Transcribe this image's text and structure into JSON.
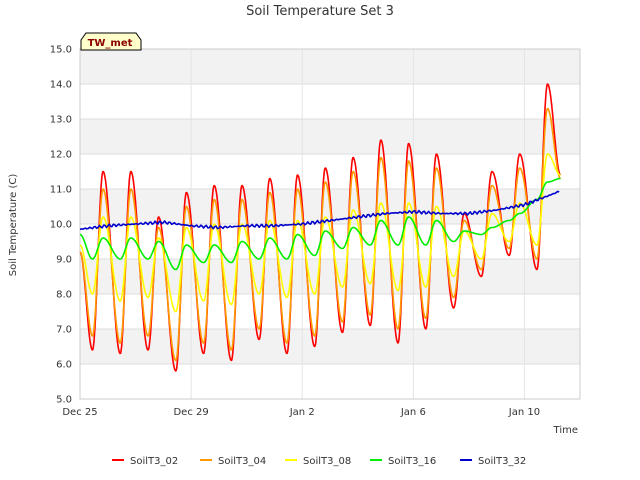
{
  "chart_data": {
    "type": "line",
    "title": "Soil Temperature Set 3",
    "xlabel": "Time",
    "ylabel": "Soil Temperature (C)",
    "badge": "TW_met",
    "x_start": "Dec 25",
    "x_end": "Jan 11",
    "xlim": [
      "Dec 25",
      "Jan 12"
    ],
    "ylim": [
      5.0,
      15.0
    ],
    "y_ticks": [
      "5.0",
      "6.0",
      "7.0",
      "8.0",
      "9.0",
      "10.0",
      "11.0",
      "12.0",
      "13.0",
      "14.0",
      "15.0"
    ],
    "x_ticks": [
      {
        "label": "Dec 25",
        "day": 0
      },
      {
        "label": "Dec 29",
        "day": 4
      },
      {
        "label": "Jan 2",
        "day": 8
      },
      {
        "label": "Jan 6",
        "day": 12
      },
      {
        "label": "Jan 10",
        "day": 16
      }
    ],
    "background_bands": "alternating light gray every 1.0 °C",
    "grid": true,
    "legend_position": "bottom",
    "series": [
      {
        "name": "SoilT3_02",
        "color": "#ff0000",
        "minima": [
          9.2,
          6.4,
          6.3,
          6.4,
          5.8,
          6.3,
          6.1,
          6.7,
          6.3,
          6.5,
          6.9,
          7.1,
          6.6,
          7.0,
          7.6,
          8.5,
          9.1,
          8.7,
          11.4
        ],
        "maxima": [
          11.5,
          11.5,
          10.2,
          10.9,
          11.1,
          11.1,
          11.3,
          11.4,
          11.6,
          11.9,
          12.4,
          12.3,
          12.0,
          10.3,
          11.5,
          12.0,
          14.0,
          13.6
        ]
      },
      {
        "name": "SoilT3_04",
        "color": "#ff9900",
        "minima": [
          9.2,
          6.8,
          6.6,
          6.8,
          6.1,
          6.6,
          6.4,
          7.0,
          6.6,
          6.8,
          7.2,
          7.4,
          7.0,
          7.3,
          7.9,
          8.7,
          9.3,
          9.0,
          11.3
        ],
        "maxima": [
          11.0,
          11.0,
          9.9,
          10.5,
          10.7,
          10.7,
          10.9,
          11.0,
          11.2,
          11.5,
          11.9,
          11.8,
          11.6,
          10.1,
          11.1,
          11.6,
          13.3,
          13.1
        ]
      },
      {
        "name": "SoilT3_08",
        "color": "#ffff00",
        "minima": [
          9.4,
          8.0,
          7.8,
          7.9,
          7.5,
          7.8,
          7.7,
          8.0,
          7.9,
          8.0,
          8.2,
          8.3,
          8.1,
          8.2,
          8.5,
          9.0,
          9.5,
          9.4,
          11.4
        ],
        "maxima": [
          10.2,
          10.2,
          9.6,
          9.9,
          10.0,
          10.0,
          10.1,
          10.1,
          10.2,
          10.4,
          10.6,
          10.6,
          10.5,
          9.8,
          10.3,
          10.6,
          12.0,
          12.0
        ]
      },
      {
        "name": "SoilT3_16",
        "color": "#00ee00",
        "minima": [
          9.7,
          9.0,
          9.0,
          9.0,
          8.7,
          8.9,
          8.9,
          9.0,
          9.0,
          9.1,
          9.3,
          9.4,
          9.4,
          9.4,
          9.5,
          9.7,
          10.1,
          10.7,
          11.3
        ],
        "maxima": [
          9.6,
          9.6,
          9.5,
          9.4,
          9.4,
          9.5,
          9.6,
          9.7,
          9.8,
          9.9,
          10.1,
          10.2,
          10.1,
          9.8,
          9.9,
          10.3,
          11.2,
          11.0
        ]
      },
      {
        "name": "SoilT3_32",
        "color": "#0000cc",
        "x": [
          0,
          1,
          2,
          3,
          4,
          5,
          6,
          7,
          8,
          9,
          10,
          11,
          12,
          13,
          14,
          15,
          16,
          17,
          17.3
        ],
        "values": [
          9.85,
          9.95,
          10.0,
          10.05,
          9.95,
          9.9,
          9.95,
          9.95,
          10.0,
          10.1,
          10.2,
          10.3,
          10.35,
          10.3,
          10.3,
          10.4,
          10.55,
          10.85,
          10.95
        ]
      }
    ]
  }
}
